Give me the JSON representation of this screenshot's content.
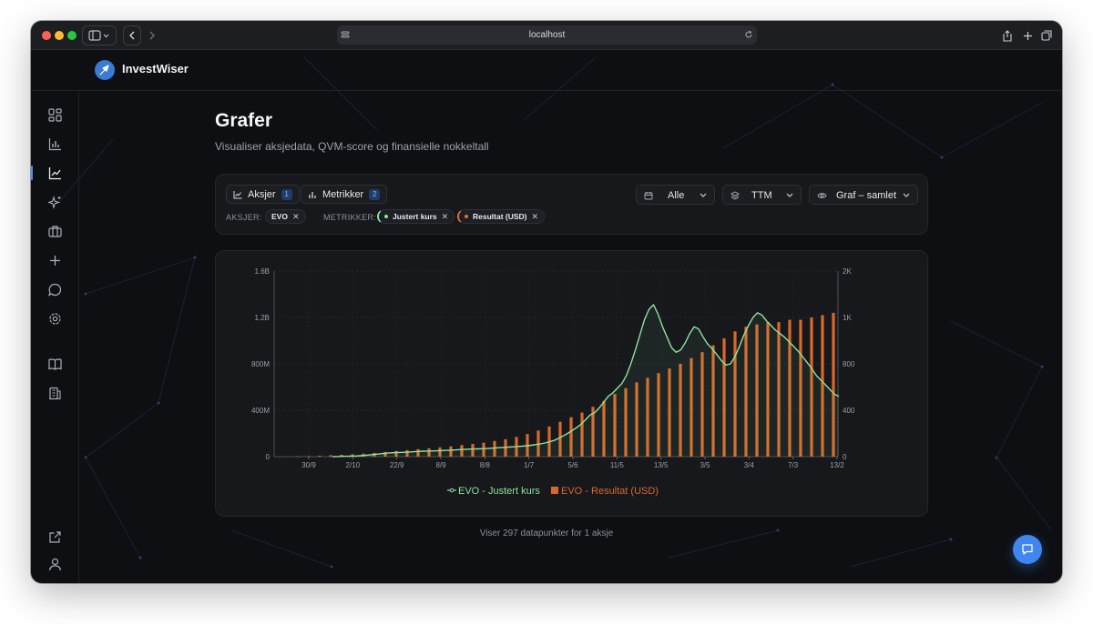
{
  "browser": {
    "url": "localhost"
  },
  "app": {
    "brand": "InvestWiser"
  },
  "sidebar": {
    "icons": [
      "dashboard-icon",
      "bar-chart-icon",
      "line-chart-icon",
      "sparkles-icon",
      "briefcase-icon",
      "plus-icon",
      "message-icon",
      "settings-icon",
      "book-icon",
      "building-icon"
    ],
    "bottom_icons": [
      "external-link-icon",
      "user-icon"
    ]
  },
  "page": {
    "title": "Grafer",
    "subtitle": "Visualiser aksjedata, QVM-score og finansielle nokkeltall"
  },
  "controls": {
    "aksjer_label": "Aksjer",
    "aksjer_count": "1",
    "metrikker_label": "Metrikker",
    "metrikker_count": "2",
    "period_value": "Alle",
    "basis_value": "TTM",
    "view_value": "Graf – samlet",
    "aksjer_tag_label": "AKSJER:",
    "metrikker_tag_label": "METRIKKER:",
    "chips": {
      "stock": "EVO",
      "metric1": "Justert kurs",
      "metric2": "Resultat (USD)"
    },
    "remove_glyph": "✕"
  },
  "chart_data": {
    "type": "bar+line",
    "x_tick_labels": [
      "30/9",
      "2/10",
      "22/9",
      "8/9",
      "8/8",
      "1/7",
      "5/6",
      "11/5",
      "13/5",
      "3/5",
      "3/4",
      "7/3",
      "13/2"
    ],
    "left_axis": {
      "ticks": [
        "0",
        "400M",
        "800M",
        "1.2B",
        "1.6B"
      ],
      "range": [
        0,
        1600000000
      ]
    },
    "right_axis": {
      "ticks": [
        "0",
        "400",
        "800",
        "1K",
        "2K"
      ],
      "range": [
        0,
        1600
      ]
    },
    "series": [
      {
        "name": "EVO - Justert kurs",
        "type": "line",
        "axis": "right",
        "color": "#8fe39b",
        "values": [
          0,
          1,
          2,
          3,
          4,
          5,
          8,
          10,
          14,
          18,
          22,
          26,
          30,
          33,
          35,
          36,
          38,
          40,
          42,
          45,
          47,
          48,
          49,
          50,
          52,
          54,
          55,
          57,
          60,
          62,
          64,
          66,
          67,
          68,
          70,
          72,
          75,
          78,
          80,
          82,
          85,
          88,
          90,
          94,
          98,
          104,
          110,
          118,
          128,
          140,
          158,
          178,
          200,
          225,
          250,
          280,
          320,
          360,
          380,
          420,
          470,
          520,
          550,
          590,
          630,
          700,
          800,
          920,
          1050,
          1180,
          1270,
          1310,
          1230,
          1120,
          1030,
          940,
          900,
          920,
          980,
          1060,
          1120,
          1100,
          1030,
          970,
          930,
          880,
          830,
          790,
          800,
          860,
          950,
          1050,
          1130,
          1200,
          1240,
          1220,
          1170,
          1130,
          1090,
          1060,
          1030,
          990,
          950,
          910,
          860,
          810,
          760,
          700,
          660,
          620,
          580,
          540,
          520
        ]
      },
      {
        "name": "EVO - Resultat (USD)",
        "type": "bar",
        "axis": "left",
        "color": "#d9692a",
        "values": [
          2000000,
          5000000,
          8000000,
          12000000,
          16000000,
          20000000,
          26000000,
          32000000,
          40000000,
          48000000,
          56000000,
          64000000,
          72000000,
          80000000,
          88000000,
          100000000,
          110000000,
          120000000,
          135000000,
          150000000,
          170000000,
          195000000,
          225000000,
          260000000,
          300000000,
          340000000,
          380000000,
          430000000,
          480000000,
          540000000,
          590000000,
          640000000,
          680000000,
          720000000,
          760000000,
          800000000,
          850000000,
          900000000,
          960000000,
          1020000000,
          1080000000,
          1120000000,
          1140000000,
          1160000000,
          1160000000,
          1180000000,
          1180000000,
          1200000000,
          1220000000,
          1240000000
        ]
      }
    ],
    "grid": true,
    "legend_position": "bottom-center"
  },
  "footer": {
    "summary": "Viser 297 datapunkter for 1 aksje"
  }
}
